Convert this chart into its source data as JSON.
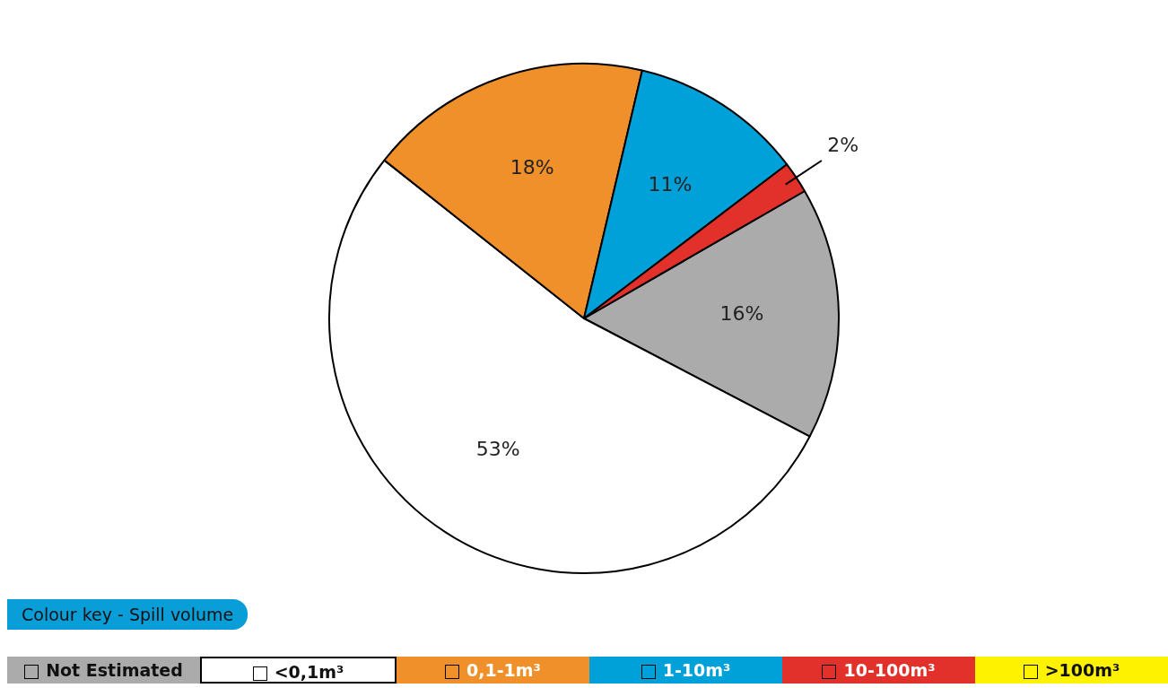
{
  "chart_data": {
    "type": "pie",
    "legend_title": "Colour key - Spill volume",
    "legend": "bottom",
    "categories": [
      "Not Estimated",
      "<0,1m³",
      "0,1-1m³",
      "1-10m³",
      "10-100m³",
      ">100m³"
    ],
    "values": [
      16,
      53,
      18,
      11,
      2,
      0
    ],
    "colors": [
      "#ababab",
      "#ffffff",
      "#f0902a",
      "#00a0d8",
      "#e2302a",
      "#fff200"
    ],
    "value_labels": [
      "16%",
      "53%",
      "18%",
      "11%",
      "2%",
      null
    ]
  }
}
